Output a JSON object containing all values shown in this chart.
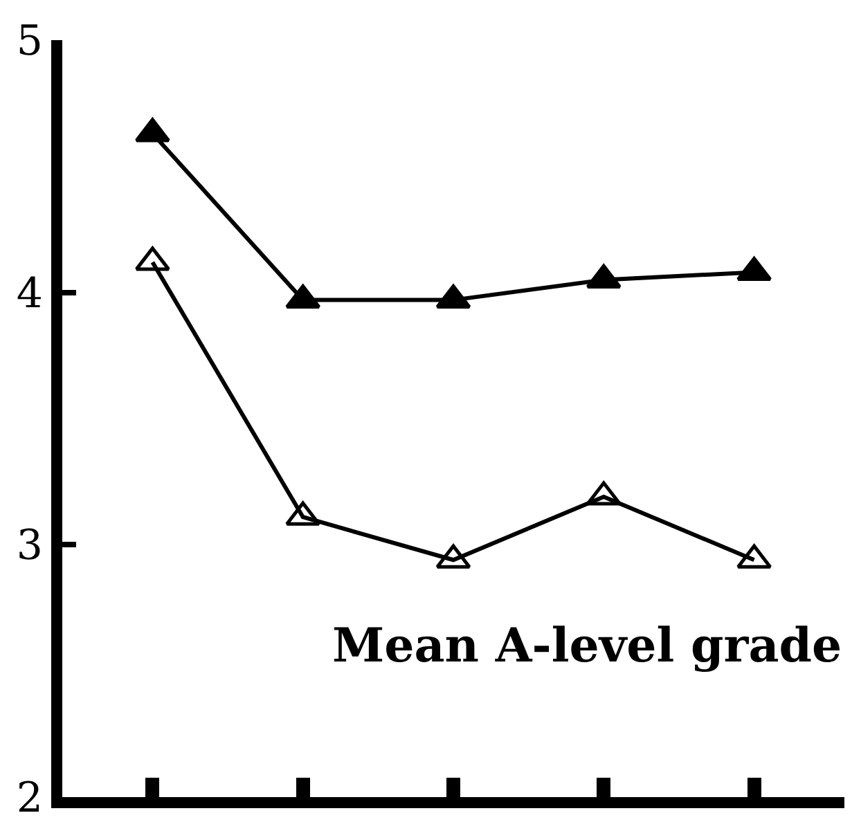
{
  "chart_data": {
    "type": "line",
    "categories": [
      null,
      null,
      null,
      null,
      null
    ],
    "series": [
      {
        "color": "#000000",
        "marker": "triangle",
        "values": [
          4.63,
          3.97,
          3.97,
          4.05,
          4.08
        ]
      },
      {
        "color": "#000000",
        "marker": "triangle-open",
        "values": [
          4.12,
          3.11,
          2.94,
          3.19,
          2.94
        ]
      }
    ],
    "ylim": [
      2,
      5
    ],
    "yticks": [
      2,
      3,
      4,
      5
    ],
    "tick_labels": "y",
    "grid": false,
    "line_style": "solid",
    "annotations": [
      "Mean A-level grade"
    ]
  }
}
